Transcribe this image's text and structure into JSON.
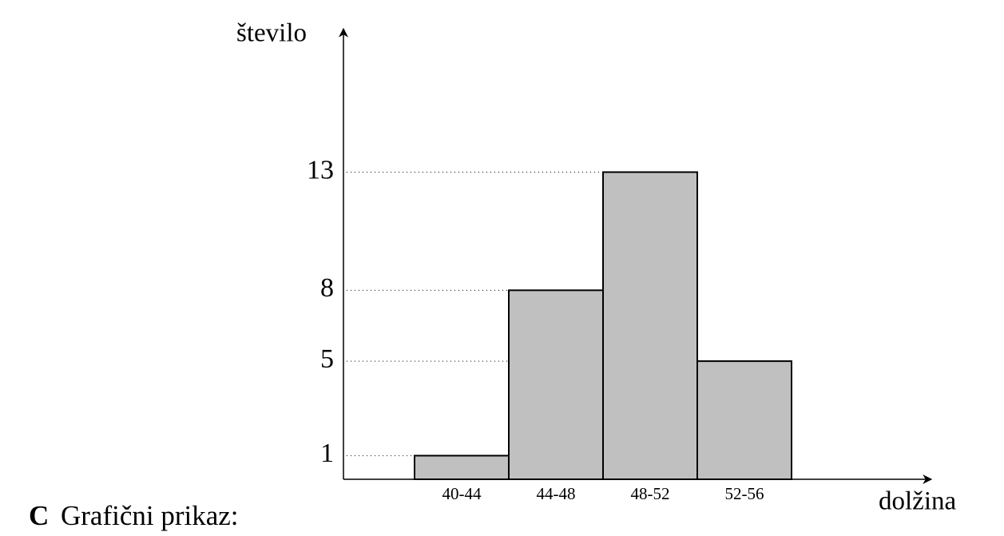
{
  "chart_data": {
    "type": "bar",
    "x_label": "dolžina",
    "y_label": "število",
    "categories": [
      "40-44",
      "44-48",
      "48-52",
      "52-56"
    ],
    "values": [
      1,
      8,
      13,
      5
    ],
    "color": "#c0c0c0",
    "ylim": [
      0,
      19
    ],
    "yticks": [
      1,
      5,
      8,
      13
    ],
    "grid": true
  },
  "caption": {
    "letter": "C",
    "text": "Grafični prikaz:"
  }
}
